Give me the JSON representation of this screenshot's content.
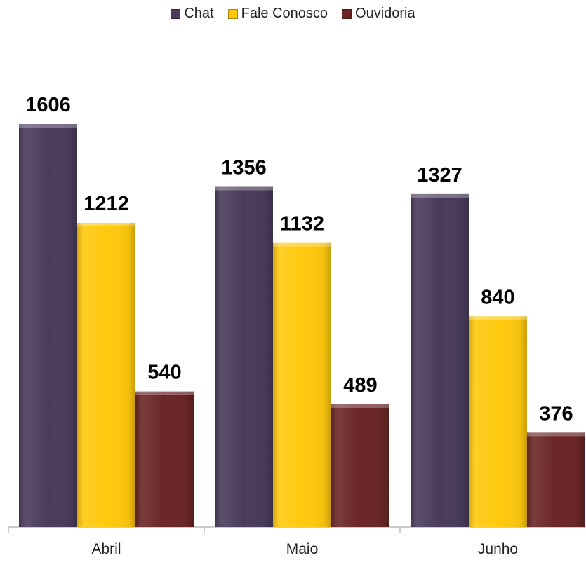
{
  "chart_data": {
    "type": "bar",
    "categories": [
      "Abril",
      "Maio",
      "Junho"
    ],
    "series": [
      {
        "name": "Chat",
        "color": "#4a3b5c",
        "values": [
          1606,
          1356,
          1327
        ]
      },
      {
        "name": "Fale Conosco",
        "color": "#ffc90e",
        "values": [
          1212,
          1132,
          840
        ]
      },
      {
        "name": "Ouvidoria",
        "color": "#6b2626",
        "values": [
          540,
          489,
          376
        ]
      }
    ],
    "title": "",
    "xlabel": "",
    "ylabel": "",
    "ylim": [
      0,
      1606
    ],
    "grid": false,
    "legend_position": "top-center",
    "data_labels": true
  }
}
